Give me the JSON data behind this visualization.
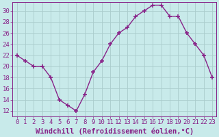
{
  "x": [
    0,
    1,
    2,
    3,
    4,
    5,
    6,
    7,
    8,
    9,
    10,
    11,
    12,
    13,
    14,
    15,
    16,
    17,
    18,
    19,
    20,
    21,
    22,
    23
  ],
  "y": [
    22,
    21,
    20,
    20,
    18,
    14,
    13,
    12,
    15,
    19,
    21,
    24,
    26,
    27,
    29,
    30,
    31,
    31,
    29,
    29,
    26,
    24,
    22,
    18
  ],
  "line_color": "#882288",
  "marker": "+",
  "marker_size": 4,
  "bg_color": "#c8eaea",
  "grid_color": "#aacccc",
  "xlabel": "Windchill (Refroidissement éolien,°C)",
  "ylim": [
    11,
    31.5
  ],
  "xlim": [
    -0.5,
    23.5
  ],
  "yticks": [
    12,
    14,
    16,
    18,
    20,
    22,
    24,
    26,
    28,
    30
  ],
  "xticks": [
    0,
    1,
    2,
    3,
    4,
    5,
    6,
    7,
    8,
    9,
    10,
    11,
    12,
    13,
    14,
    15,
    16,
    17,
    18,
    19,
    20,
    21,
    22,
    23
  ],
  "tick_color": "#882288",
  "tick_fontsize": 6.5,
  "xlabel_fontsize": 7.5,
  "xlabel_color": "#882288",
  "line_width": 1.0
}
